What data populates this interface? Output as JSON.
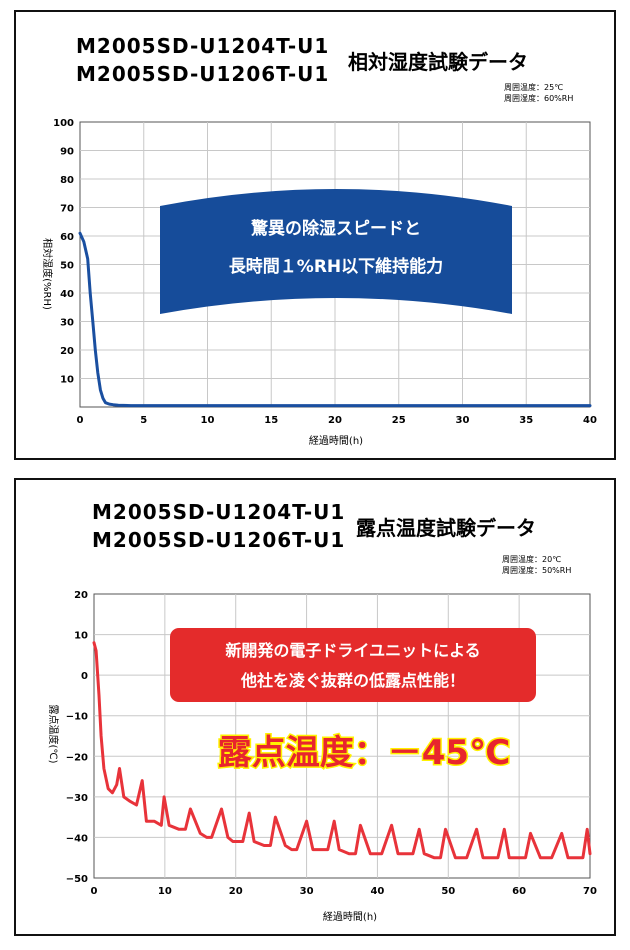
{
  "charts": [
    {
      "models": [
        "M2005SD-U1204T-U1",
        "M2005SD-U1206T-U1"
      ],
      "title": "相対湿度試験データ",
      "conditions": [
        "周囲温度：25℃",
        "周囲湿度：60%RH"
      ],
      "banner": [
        "驚異の除湿スピードと",
        "長時間１%RH以下維持能力"
      ]
    },
    {
      "models": [
        "M2005SD-U1204T-U1",
        "M2005SD-U1206T-U1"
      ],
      "title": "露点温度試験データ",
      "conditions": [
        "周囲温度：20℃",
        "周囲湿度：50%RH"
      ],
      "banner": [
        "新開発の電子ドライユニットによる",
        "他社を凌ぐ抜群の低露点性能！"
      ],
      "highlight": "露点温度：－45℃"
    }
  ],
  "colors": {
    "humidity_line": "#1a4fa0",
    "dewpoint_line": "#e8333a",
    "banner_blue": "#164c9a",
    "banner_red": "#e42b2b",
    "highlight_text": "#e8252d",
    "highlight_outline": "#fff200"
  },
  "chart_data": [
    {
      "type": "line",
      "title": "相対湿度試験データ",
      "xlabel": "経過時間(h)",
      "ylabel": "相対湿度(%RH)",
      "xlim": [
        0,
        40
      ],
      "ylim": [
        0,
        100
      ],
      "xticks": [
        "0",
        "5",
        "10",
        "15",
        "20",
        "25",
        "30",
        "35",
        "40"
      ],
      "yticks": [
        "10",
        "20",
        "30",
        "40",
        "50",
        "60",
        "70",
        "80",
        "90",
        "100"
      ],
      "grid": true,
      "series": [
        {
          "x": [
            0,
            0.3,
            0.6,
            0.8,
            1.0,
            1.2,
            1.4,
            1.6,
            1.8,
            2.0,
            2.3,
            2.6,
            3.0,
            4,
            6,
            10,
            20,
            30,
            40
          ],
          "y": [
            61,
            58,
            52,
            40,
            30,
            20,
            12,
            6,
            3,
            1.5,
            1,
            0.8,
            0.6,
            0.5,
            0.5,
            0.5,
            0.5,
            0.5,
            0.5
          ]
        }
      ]
    },
    {
      "type": "line",
      "title": "露点温度試験データ",
      "xlabel": "経過時間(h)",
      "ylabel": "露点温度(℃)",
      "xlim": [
        0,
        70
      ],
      "ylim": [
        -50,
        20
      ],
      "xticks": [
        "0",
        "10",
        "20",
        "30",
        "40",
        "50",
        "60",
        "70"
      ],
      "yticks": [
        "20",
        "10",
        "0",
        "−10",
        "−20",
        "−30",
        "−40",
        "−50"
      ],
      "grid": true,
      "series": [
        {
          "x": [
            0,
            0.3,
            0.7,
            1.0,
            1.4,
            2.0,
            2.6,
            3.2,
            3.6,
            4.2,
            5.0,
            6.0,
            6.8,
            7.4,
            8.5,
            9.5,
            9.9,
            10.6,
            12.0,
            12.9,
            13.6,
            15.0,
            15.9,
            16.6,
            18.0,
            18.9,
            19.6,
            21.0,
            21.9,
            22.6,
            24.0,
            24.9,
            25.6,
            27.0,
            27.9,
            28.6,
            30.0,
            30.9,
            31.6,
            33.0,
            33.9,
            34.6,
            36.0,
            36.9,
            37.6,
            39.0,
            39.9,
            40.6,
            42.0,
            42.9,
            43.6,
            45.0,
            45.9,
            46.6,
            48.0,
            48.9,
            49.6,
            51.0,
            51.9,
            52.6,
            54.0,
            54.9,
            55.6,
            57.0,
            57.9,
            58.6,
            60.0,
            60.9,
            61.6,
            63.0,
            63.9,
            64.6,
            66.0,
            66.9,
            67.6,
            69.0,
            69.6,
            70.0
          ],
          "y": [
            8,
            6,
            -5,
            -15,
            -23,
            -28,
            -29,
            -27,
            -23,
            -30,
            -31,
            -32,
            -26,
            -36,
            -36,
            -37,
            -30,
            -37,
            -38,
            -38,
            -33,
            -39,
            -40,
            -40,
            -33,
            -40,
            -41,
            -41,
            -34,
            -41,
            -42,
            -42,
            -35,
            -42,
            -43,
            -43,
            -36,
            -43,
            -43,
            -43,
            -36,
            -43,
            -44,
            -44,
            -37,
            -44,
            -44,
            -44,
            -37,
            -44,
            -44,
            -44,
            -38,
            -44,
            -45,
            -45,
            -38,
            -45,
            -45,
            -45,
            -38,
            -45,
            -45,
            -45,
            -38,
            -45,
            -45,
            -45,
            -39,
            -45,
            -45,
            -45,
            -39,
            -45,
            -45,
            -45,
            -38,
            -44
          ]
        }
      ]
    }
  ]
}
